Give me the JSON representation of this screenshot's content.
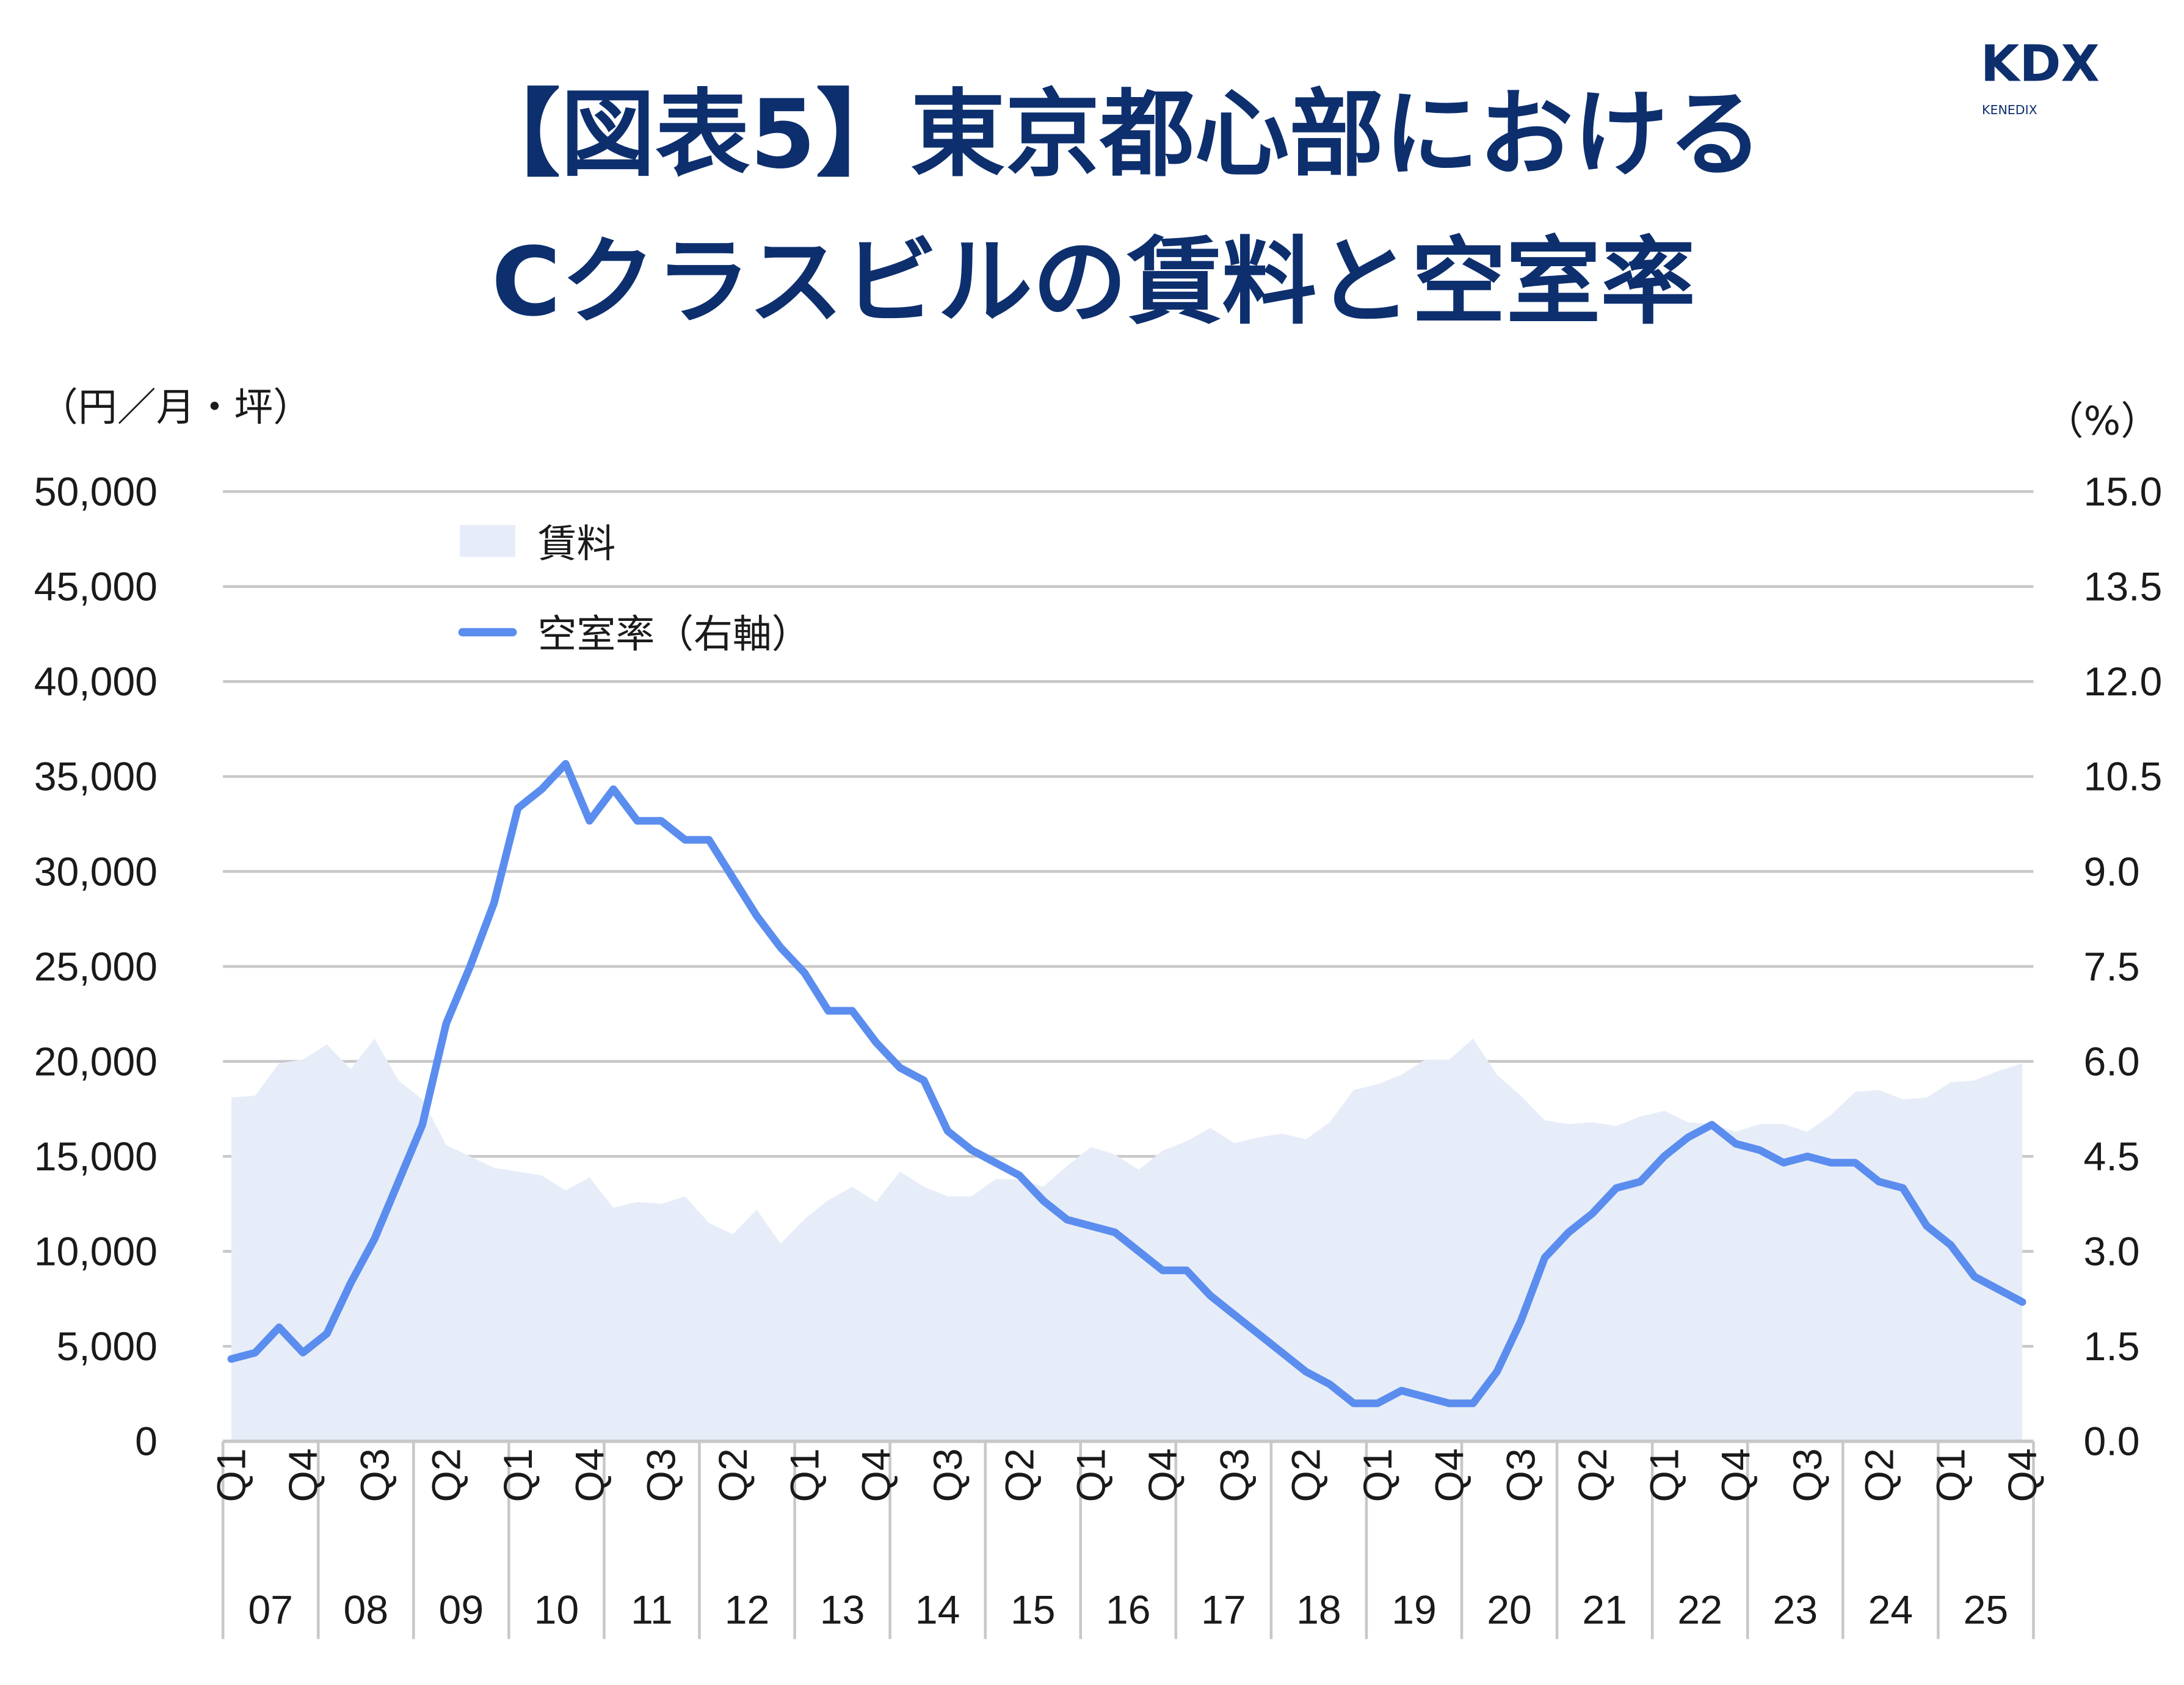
{
  "title": {
    "line1": "【図表5】東京都心部における",
    "line2": "Cクラスビルの賃料と空室率"
  },
  "logo": {
    "main": "KDX",
    "sub": "KENEDIX",
    "color": "#0d2f6e"
  },
  "chart_data": {
    "type": "area+line",
    "left_axis": {
      "unit_label": "（円／月・坪）",
      "ylim": [
        0,
        50000
      ],
      "ticks": [
        "0",
        "5,000",
        "10,000",
        "15,000",
        "20,000",
        "25,000",
        "30,000",
        "35,000",
        "40,000",
        "45,000",
        "50,000"
      ]
    },
    "right_axis": {
      "unit_label": "（%）",
      "ylim": [
        0,
        15
      ],
      "ticks": [
        "0.0",
        "1.5",
        "3.0",
        "4.5",
        "6.0",
        "7.5",
        "9.0",
        "10.5",
        "12.0",
        "13.5",
        "15.0"
      ]
    },
    "grid": true,
    "legend_placement": "top-left",
    "years": [
      "07",
      "08",
      "09",
      "10",
      "11",
      "12",
      "13",
      "14",
      "15",
      "16",
      "17",
      "18",
      "19",
      "20",
      "21",
      "22",
      "23",
      "24",
      "25"
    ],
    "quarters": [
      "Q1",
      "Q2",
      "Q3",
      "Q4"
    ],
    "series": [
      {
        "name": "賃料",
        "kind": "area",
        "axis": "left",
        "color": "#e7edf8",
        "values": [
          18100,
          18200,
          19900,
          20100,
          20900,
          19600,
          21200,
          19000,
          18000,
          15600,
          15000,
          14400,
          14200,
          14000,
          13200,
          13900,
          12300,
          12600,
          12500,
          12900,
          11500,
          10900,
          12200,
          10400,
          11700,
          12700,
          13400,
          12600,
          14200,
          13400,
          12900,
          12900,
          13800,
          13800,
          13400,
          14500,
          15500,
          15100,
          14300,
          15300,
          15800,
          16500,
          15700,
          16000,
          16200,
          15900,
          16800,
          18500,
          18800,
          19300,
          20100,
          20100,
          21200,
          19300,
          18200,
          16900,
          16700,
          16800,
          16600,
          17100,
          17400,
          16800,
          16700,
          16300,
          16700,
          16700,
          16300,
          17200,
          18400,
          18500,
          18000,
          18100,
          18900,
          19000,
          19500,
          19900
        ]
      },
      {
        "name": "空室率（右軸）",
        "kind": "line",
        "axis": "right",
        "color": "#5b8def",
        "values": [
          1.3,
          1.4,
          1.8,
          1.4,
          1.7,
          2.5,
          3.2,
          4.1,
          5.0,
          6.6,
          7.5,
          8.5,
          10.0,
          10.3,
          10.7,
          9.8,
          10.3,
          9.8,
          9.8,
          9.5,
          9.5,
          8.9,
          8.3,
          7.8,
          7.4,
          6.8,
          6.8,
          6.3,
          5.9,
          5.7,
          4.9,
          4.6,
          4.4,
          4.2,
          3.8,
          3.5,
          3.4,
          3.3,
          3.0,
          2.7,
          2.7,
          2.3,
          2.0,
          1.7,
          1.4,
          1.1,
          0.9,
          0.6,
          0.6,
          0.8,
          0.7,
          0.6,
          0.6,
          1.1,
          1.9,
          2.9,
          3.3,
          3.6,
          4.0,
          4.1,
          4.5,
          4.8,
          5.0,
          4.7,
          4.6,
          4.4,
          4.5,
          4.4,
          4.4,
          4.1,
          4.0,
          3.4,
          3.1,
          2.6,
          2.4,
          2.2
        ]
      }
    ]
  }
}
